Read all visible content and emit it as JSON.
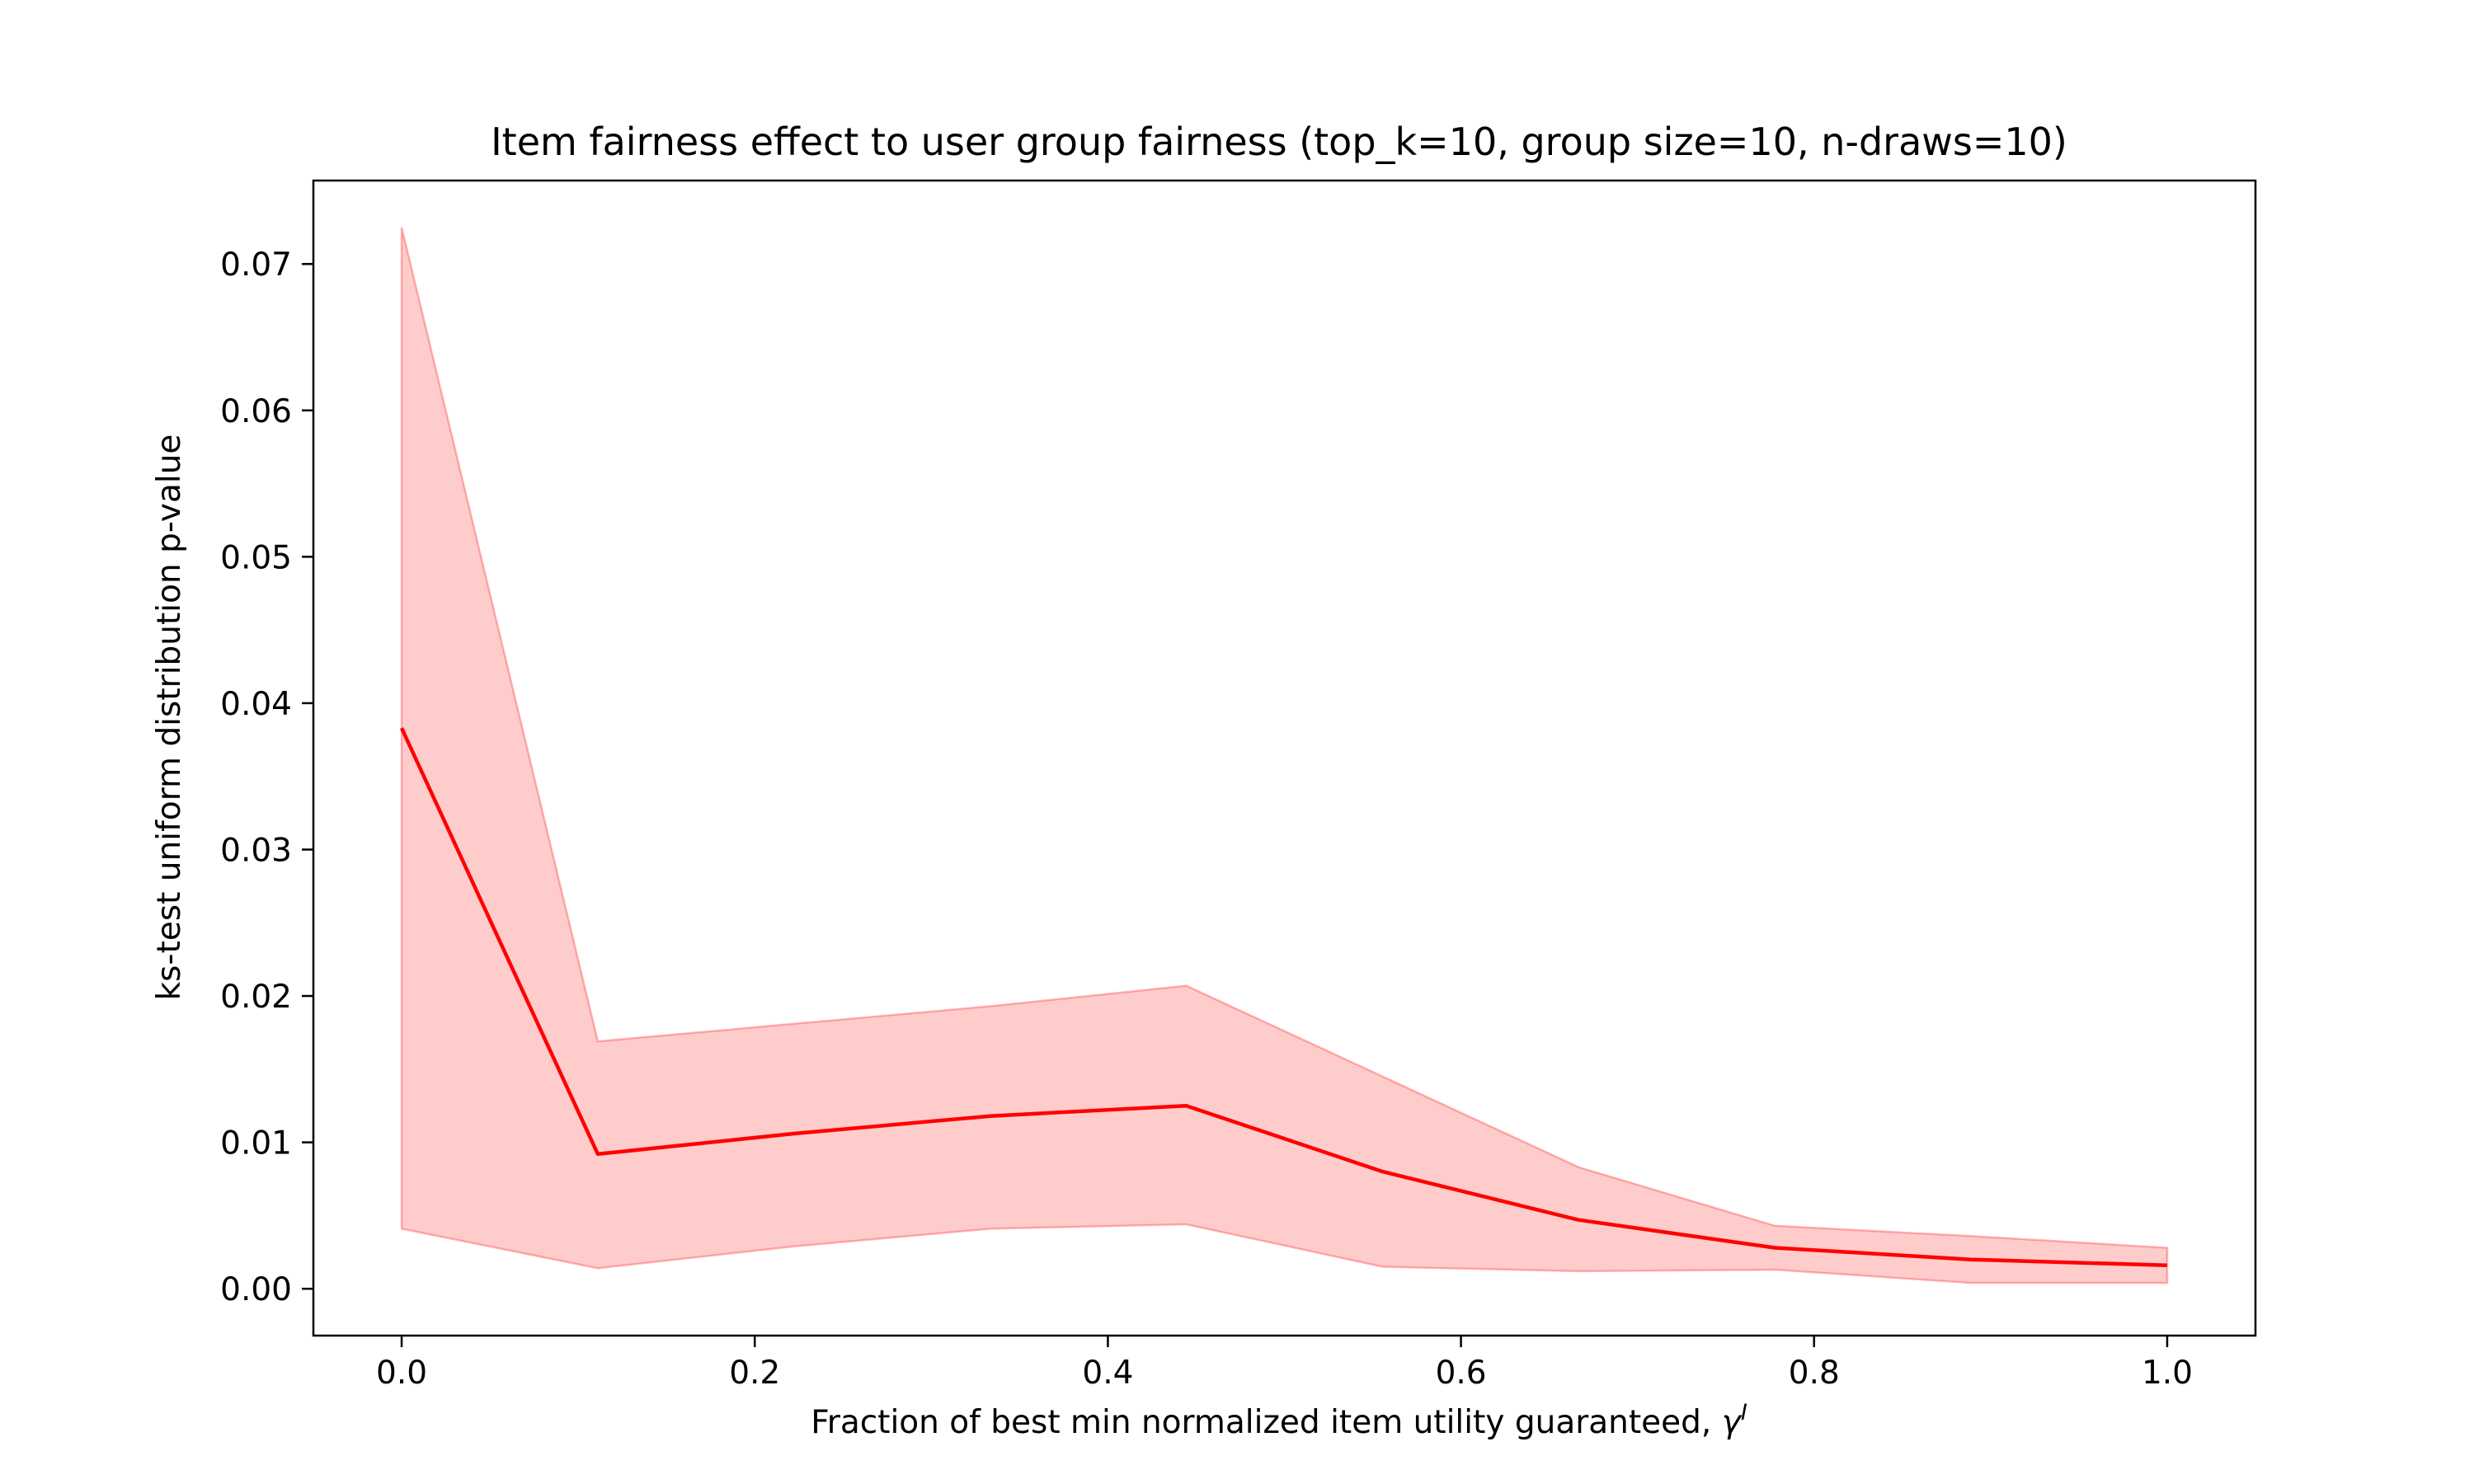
{
  "chart_data": {
    "type": "line",
    "title": "Item fairness effect to user group fairness (top_k=10, group size=10, n-draws=10)",
    "xlabel_text": "Fraction of best min normalized item utility guaranteed, ",
    "xlabel_symbol": "γ",
    "xlabel_superscript": "I",
    "ylabel": "ks-test uniform distribution p-value",
    "xlim": [
      -0.05,
      1.05
    ],
    "ylim": [
      -0.0032,
      0.0757
    ],
    "xticks": [
      0.0,
      0.2,
      0.4,
      0.6,
      0.8,
      1.0
    ],
    "xtick_labels": [
      "0.0",
      "0.2",
      "0.4",
      "0.6",
      "0.8",
      "1.0"
    ],
    "yticks": [
      0.0,
      0.01,
      0.02,
      0.03,
      0.04,
      0.05,
      0.06,
      0.07
    ],
    "ytick_labels": [
      "0.00",
      "0.01",
      "0.02",
      "0.03",
      "0.04",
      "0.05",
      "0.06",
      "0.07"
    ],
    "grid": false,
    "legend": "none",
    "series": [
      {
        "x": [
          0.0,
          0.1111,
          0.2222,
          0.3333,
          0.4444,
          0.5556,
          0.6667,
          0.7778,
          0.8889,
          1.0
        ],
        "mean": [
          0.0383,
          0.0092,
          0.0106,
          0.0118,
          0.0125,
          0.008,
          0.0047,
          0.0028,
          0.002,
          0.0016
        ],
        "upper": [
          0.0725,
          0.0169,
          0.0181,
          0.0193,
          0.0207,
          0.0145,
          0.0083,
          0.0043,
          0.0036,
          0.0028
        ],
        "lower": [
          0.0041,
          0.0014,
          0.0029,
          0.0041,
          0.0044,
          0.0015,
          0.0012,
          0.0013,
          0.0004,
          0.0004
        ]
      }
    ],
    "colors": {
      "line": "#ff0000",
      "band_fill": "#ff0000",
      "band_fill_opacity": 0.2,
      "axes": "#000000",
      "background": "#ffffff"
    }
  }
}
